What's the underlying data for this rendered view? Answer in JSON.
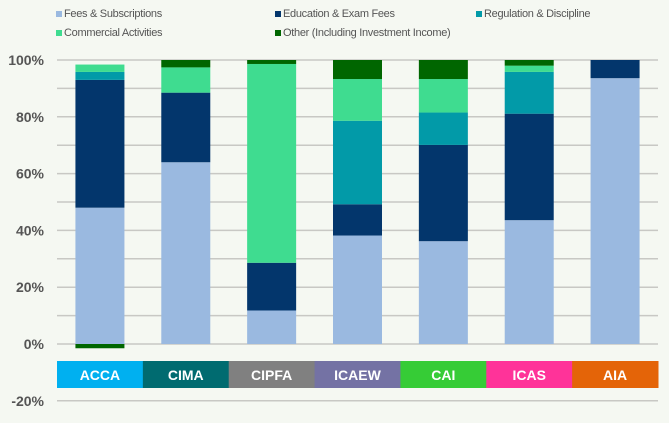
{
  "chart_data": {
    "type": "bar",
    "stacked": true,
    "categories": [
      "ACCA",
      "CIMA",
      "CIPFA",
      "ICAEW",
      "CAI",
      "ICAS",
      "AIA"
    ],
    "category_colors": [
      "#00b0f0",
      "#006b70",
      "#808080",
      "#7472a4",
      "#36cc36",
      "#ff3399",
      "#e46408"
    ],
    "series": [
      {
        "name": "Fees & Subscriptions",
        "color": "#9ab9e0",
        "values": [
          48,
          64,
          11.8,
          38.2,
          36.2,
          43.6,
          93.6
        ]
      },
      {
        "name": "Education & Exam Fees",
        "color": "#03366c",
        "values": [
          45,
          24.5,
          16.8,
          11,
          33.9,
          37.5,
          6.4
        ]
      },
      {
        "name": "Regulation & Discipline",
        "color": "#029aa8",
        "values": [
          2.8,
          0,
          0,
          29.4,
          11.4,
          14.7,
          0
        ]
      },
      {
        "name": "Commercial Activities",
        "color": "#3fdc90",
        "values": [
          2.6,
          8.9,
          70,
          14.7,
          11.8,
          2.2,
          0
        ]
      },
      {
        "name": "Other (Including Investment Income)",
        "color": "#006600",
        "values": [
          -1.5,
          2.6,
          1.4,
          6.7,
          6.7,
          2,
          0
        ]
      }
    ],
    "yticks": [
      "-20%",
      "0%",
      "20%",
      "40%",
      "60%",
      "80%",
      "100%"
    ],
    "ylim": [
      -20,
      100
    ],
    "grid": true,
    "legend_position": "top"
  }
}
